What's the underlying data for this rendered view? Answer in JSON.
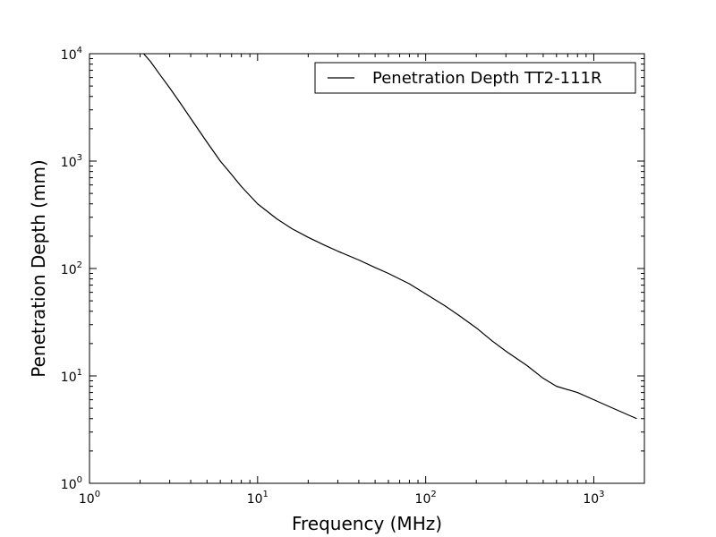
{
  "chart_data": {
    "type": "line",
    "title": "",
    "xlabel": "Frequency (MHz)",
    "ylabel": "Penetration Depth (mm)",
    "xscale": "log",
    "yscale": "log",
    "xlim": [
      1,
      2000
    ],
    "ylim": [
      1,
      10000
    ],
    "grid": false,
    "legend_position": "top-right",
    "x_ticks": [
      {
        "base": "10",
        "exp": "0",
        "value": 1
      },
      {
        "base": "10",
        "exp": "1",
        "value": 10
      },
      {
        "base": "10",
        "exp": "2",
        "value": 100
      },
      {
        "base": "10",
        "exp": "3",
        "value": 1000
      }
    ],
    "y_ticks": [
      {
        "base": "10",
        "exp": "0",
        "value": 1
      },
      {
        "base": "10",
        "exp": "1",
        "value": 10
      },
      {
        "base": "10",
        "exp": "2",
        "value": 100
      },
      {
        "base": "10",
        "exp": "3",
        "value": 1000
      },
      {
        "base": "10",
        "exp": "4",
        "value": 10000
      }
    ],
    "series": [
      {
        "name": "Penetration Depth TT2-111R",
        "color": "#000000",
        "x": [
          2.1,
          2.3,
          2.6,
          3.0,
          3.5,
          4.0,
          5.0,
          6.0,
          7.0,
          8.0,
          10,
          13,
          16,
          20,
          25,
          30,
          40,
          50,
          60,
          80,
          100,
          130,
          160,
          200,
          250,
          300,
          400,
          500,
          600,
          800,
          1000,
          1300,
          1800
        ],
        "y": [
          10000,
          8500,
          6500,
          4800,
          3400,
          2500,
          1500,
          1000,
          750,
          580,
          400,
          290,
          235,
          195,
          165,
          145,
          120,
          102,
          90,
          72,
          58,
          45,
          36,
          28,
          21,
          17,
          12.5,
          9.5,
          8.0,
          7.0,
          6.0,
          5.0,
          4.0
        ]
      }
    ]
  }
}
